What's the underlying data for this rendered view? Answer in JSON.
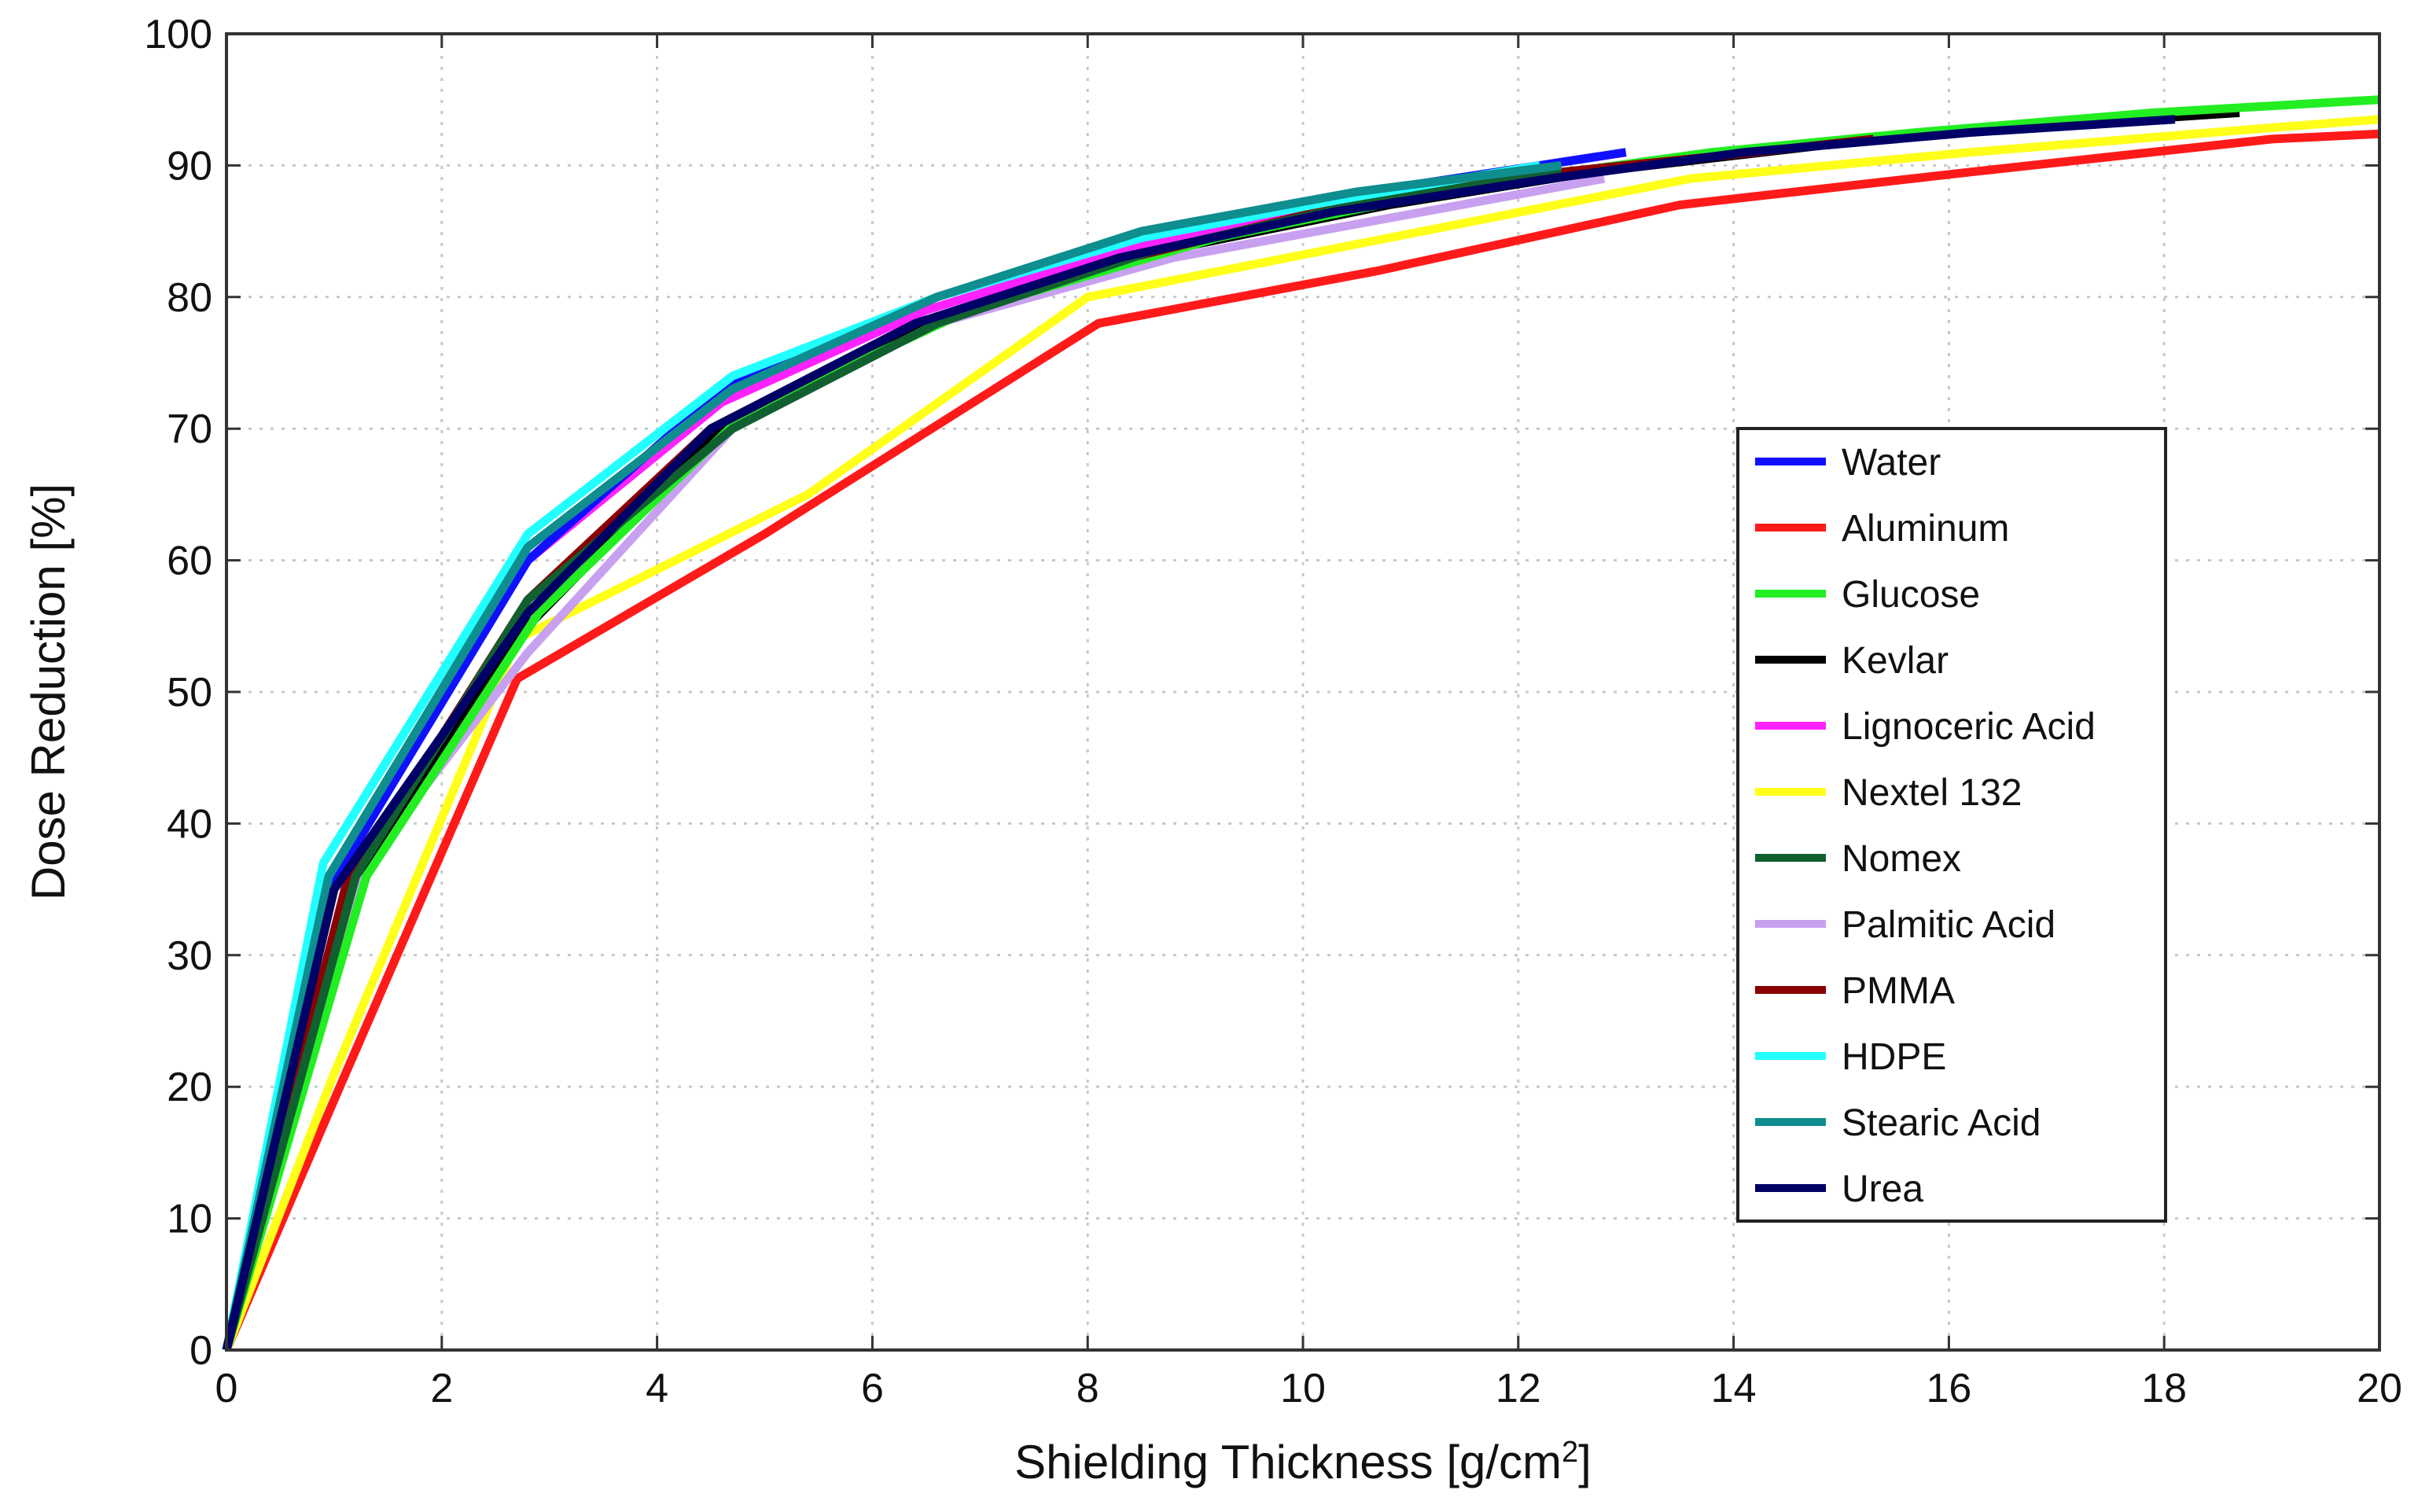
{
  "chart_data": {
    "type": "line",
    "title": "",
    "xlabel": "Shielding Thickness [g/cm",
    "xlabel_sup": "2",
    "xlabel_end": "]",
    "ylabel": "Dose Reduction [%]",
    "xlim": [
      0,
      20
    ],
    "ylim": [
      0,
      100
    ],
    "xticks": [
      0,
      2,
      4,
      6,
      8,
      10,
      12,
      14,
      16,
      18,
      20
    ],
    "yticks": [
      0,
      10,
      20,
      30,
      40,
      50,
      60,
      70,
      80,
      90,
      100
    ],
    "grid": true,
    "legend_position": "right",
    "series": [
      {
        "name": "Aluminum",
        "color": "#ff1a1a",
        "x": [
          0,
          1.0,
          2.7,
          5.0,
          8.1,
          10.7,
          13.5,
          16.2,
          19.0,
          20
        ],
        "y": [
          0,
          19,
          51,
          62,
          78,
          82,
          87,
          89.5,
          92,
          92.4
        ]
      },
      {
        "name": "Nextel 132",
        "color": "#ffff1a",
        "x": [
          0,
          1.0,
          2.7,
          5.4,
          8.0,
          10.8,
          13.6,
          16.2,
          18.9,
          20
        ],
        "y": [
          0,
          21,
          54,
          65,
          80,
          84.5,
          89,
          91,
          92.8,
          93.5
        ]
      },
      {
        "name": "Palmitic Acid",
        "color": "#c8a0f0",
        "x": [
          0,
          1.3,
          2.8,
          4.7,
          6.6,
          8.8,
          10.8,
          12.8
        ],
        "y": [
          0,
          37,
          53,
          70,
          78,
          83,
          86,
          89
        ]
      },
      {
        "name": "Lignoceric Acid",
        "color": "#ff22ff",
        "x": [
          0,
          0.9,
          2.8,
          4.6,
          6.5,
          8.5,
          10.6,
          12.5
        ],
        "y": [
          0,
          35,
          60,
          72,
          79,
          84,
          87.5,
          89.5
        ]
      },
      {
        "name": "Kevlar",
        "color": "#000000",
        "x": [
          0,
          1.2,
          2.8,
          4.6,
          6.5,
          8.7,
          10.8,
          12.7,
          14.8,
          16.8,
          18.7
        ],
        "y": [
          0,
          36,
          55,
          70,
          78,
          83.5,
          87,
          89.5,
          91.5,
          93,
          94
        ]
      },
      {
        "name": "Glucose",
        "color": "#22ee22",
        "x": [
          0,
          1.3,
          2.9,
          4.8,
          6.9,
          9.2,
          11.6,
          13.8,
          15.7,
          17.9,
          20
        ],
        "y": [
          0,
          36,
          56,
          71,
          79,
          84.5,
          88.5,
          91,
          92.5,
          94,
          95
        ]
      },
      {
        "name": "PMMA",
        "color": "#8b0000",
        "x": [
          0,
          1.1,
          2.8,
          4.5,
          6.4,
          8.4,
          10.4,
          12.4,
          14.2,
          15.3
        ],
        "y": [
          0,
          35,
          57,
          70,
          78,
          83,
          87,
          89.5,
          91,
          92
        ]
      },
      {
        "name": "Nomex",
        "color": "#106030",
        "x": [
          0,
          1.2,
          2.8,
          4.7,
          6.6,
          8.6,
          10.6,
          12.4
        ],
        "y": [
          0,
          36,
          57,
          70,
          78,
          83.5,
          87.2,
          89.5
        ]
      },
      {
        "name": "Water",
        "color": "#1010ff",
        "x": [
          0,
          0.95,
          2.8,
          4.6,
          6.6,
          8.6,
          10.6,
          13.0
        ],
        "y": [
          0,
          35,
          60,
          73,
          80,
          85,
          88,
          91
        ]
      },
      {
        "name": "HDPE",
        "color": "#22ffff",
        "x": [
          0,
          0.9,
          2.8,
          4.7,
          6.6,
          8.5,
          10.4,
          12.2
        ],
        "y": [
          0,
          37,
          62,
          74,
          80,
          84.5,
          87.5,
          90
        ]
      },
      {
        "name": "Stearic Acid",
        "color": "#0e8e8e",
        "x": [
          0,
          0.95,
          2.8,
          4.7,
          6.6,
          8.5,
          10.5,
          12.4
        ],
        "y": [
          0,
          36,
          61,
          73,
          80,
          85,
          88,
          90
        ]
      },
      {
        "name": "Urea",
        "color": "#000066",
        "x": [
          0,
          1.0,
          2.8,
          4.5,
          6.4,
          8.3,
          10.3,
          12.3,
          14.1,
          16.2,
          18.1
        ],
        "y": [
          0,
          35,
          56,
          70,
          78,
          83,
          86.5,
          89,
          91,
          92.5,
          93.5
        ]
      }
    ],
    "legend_order": [
      "Water",
      "Aluminum",
      "Glucose",
      "Kevlar",
      "Lignoceric Acid",
      "Nextel 132",
      "Nomex",
      "Palmitic Acid",
      "PMMA",
      "HDPE",
      "Stearic Acid",
      "Urea"
    ]
  }
}
